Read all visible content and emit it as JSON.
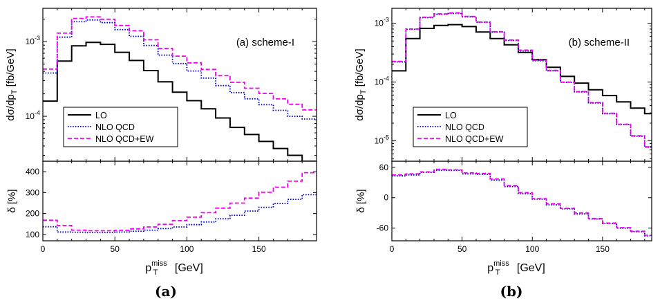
{
  "captions": [
    "(a)",
    "(b)"
  ],
  "colors": {
    "LO": "#000000",
    "NLO QCD": "#0000cc",
    "NLO QCD+EW": "#ee00ee"
  },
  "chart_data": [
    {
      "type": "line",
      "panel": "top",
      "annotation": "(a) scheme-I",
      "ylabel": "dσ/dp_T [fb/GeV]",
      "ylabel_main": "dσ/dp",
      "ylabel_sub": "T",
      "ylabel_tail": " [fb/GeV]",
      "xlim": [
        0,
        190
      ],
      "ylim": [
        2.5e-05,
        0.0028
      ],
      "yscale": "log",
      "yticks": [
        {
          "value": 0.0001,
          "base": "10",
          "exp": "-4"
        },
        {
          "value": 0.001,
          "base": "10",
          "exp": "-3"
        }
      ],
      "legend": "bottom-left",
      "bin_edges": [
        0,
        10,
        20,
        30,
        40,
        50,
        60,
        70,
        80,
        90,
        100,
        110,
        120,
        130,
        140,
        150,
        160,
        170,
        180,
        190
      ],
      "series": [
        {
          "name": "LO",
          "values": [
            0.00016,
            0.00055,
            0.00088,
            0.00098,
            0.00092,
            0.00072,
            0.00056,
            0.00041,
            0.00029,
            0.00021,
            0.000162,
            0.000126,
            9.5e-05,
            7.1e-05,
            5.7e-05,
            4.6e-05,
            3.7e-05,
            3e-05,
            2.5e-05
          ]
        },
        {
          "name": "NLO QCD",
          "values": [
            0.00038,
            0.00115,
            0.00185,
            0.00195,
            0.0018,
            0.00145,
            0.00118,
            0.00089,
            0.00066,
            0.00051,
            0.000405,
            0.000325,
            0.000258,
            0.000208,
            0.000171,
            0.000143,
            0.00012,
            0.0001,
            9.2e-05
          ]
        },
        {
          "name": "NLO QCD+EW",
          "values": [
            0.00043,
            0.0013,
            0.00205,
            0.00215,
            0.002,
            0.00165,
            0.0014,
            0.00106,
            0.00081,
            0.00064,
            0.00052,
            0.000425,
            0.00035,
            0.000285,
            0.000238,
            0.000202,
            0.000171,
            0.000145,
            0.000122
          ]
        }
      ]
    },
    {
      "type": "line",
      "panel": "bottom",
      "ylabel": "δ [%]",
      "xlabel": "p_T^miss [GeV]",
      "xlabel_main": "p",
      "xlabel_sup": "miss",
      "xlabel_sub": "T",
      "xlabel_tail": " [GeV]",
      "xlim": [
        0,
        190
      ],
      "xticks": [
        0,
        50,
        100,
        150
      ],
      "ylim": [
        70,
        450
      ],
      "yticks": [
        100,
        200,
        300,
        400
      ],
      "bin_edges": [
        0,
        10,
        20,
        30,
        40,
        50,
        60,
        70,
        80,
        90,
        100,
        110,
        120,
        130,
        140,
        150,
        160,
        170,
        180,
        190
      ],
      "series": [
        {
          "name": "NLO QCD",
          "values": [
            137,
            112,
            111,
            110,
            110,
            112,
            116,
            121,
            128,
            136,
            147,
            160,
            175,
            192,
            212,
            230,
            248,
            268,
            290
          ]
        },
        {
          "name": "NLO QCD+EW",
          "values": [
            168,
            143,
            121,
            118,
            118,
            120,
            127,
            136,
            149,
            166,
            183,
            204,
            226,
            250,
            274,
            302,
            326,
            355,
            395
          ]
        }
      ]
    },
    {
      "type": "line",
      "panel": "top",
      "annotation": "(b) scheme-II",
      "ylabel": "dσ/dp_T [fb/GeV]",
      "ylabel_main": "dσ/dp",
      "ylabel_sub": "T",
      "ylabel_tail": " [fb/GeV]",
      "xlim": [
        0,
        185
      ],
      "ylim": [
        4.5e-06,
        0.0018
      ],
      "yscale": "log",
      "yticks": [
        {
          "value": 1e-05,
          "base": "10",
          "exp": "-5"
        },
        {
          "value": 0.0001,
          "base": "10",
          "exp": "-4"
        },
        {
          "value": 0.001,
          "base": "10",
          "exp": "-3"
        }
      ],
      "legend": "bottom-left",
      "bin_edges": [
        0,
        10,
        20,
        30,
        40,
        50,
        60,
        70,
        80,
        90,
        100,
        110,
        120,
        130,
        140,
        150,
        160,
        170,
        180,
        185
      ],
      "series": [
        {
          "name": "LO",
          "values": [
            0.000155,
            0.00055,
            0.00082,
            0.00092,
            0.00095,
            0.00088,
            0.00071,
            0.00055,
            0.00043,
            0.00032,
            0.00024,
            0.000178,
            0.000125,
            9.6e-05,
            7.4e-05,
            5.9e-05,
            4.6e-05,
            3.6e-05,
            2.9e-05
          ]
        },
        {
          "name": "NLO QCD",
          "values": [
            0.00022,
            0.00079,
            0.00125,
            0.00142,
            0.00147,
            0.00129,
            0.00104,
            0.00071,
            0.00051,
            0.00034,
            0.00023,
            0.000155,
            9.9e-05,
            6.8e-05,
            4.4e-05,
            2.9e-05,
            1.9e-05,
            1.2e-05,
            7.8e-06
          ]
        },
        {
          "name": "NLO QCD+EW",
          "values": [
            0.000225,
            0.0008,
            0.00127,
            0.00145,
            0.0015,
            0.00131,
            0.00105,
            0.00072,
            0.00052,
            0.00035,
            0.000235,
            0.000158,
            0.0001,
            6.9e-05,
            4.5e-05,
            2.95e-05,
            1.92e-05,
            1.22e-05,
            7.9e-06
          ]
        }
      ]
    },
    {
      "type": "line",
      "panel": "bottom",
      "ylabel": "δ [%]",
      "xlabel": "p_T^miss [GeV]",
      "xlabel_main": "p",
      "xlabel_sup": "miss",
      "xlabel_sub": "T",
      "xlabel_tail": " [GeV]",
      "xlim": [
        0,
        185
      ],
      "xticks": [
        0,
        50,
        100,
        150
      ],
      "ylim": [
        -85,
        72
      ],
      "yticks": [
        -60,
        0,
        60
      ],
      "bin_edges": [
        0,
        10,
        20,
        30,
        40,
        50,
        60,
        70,
        80,
        90,
        100,
        110,
        120,
        130,
        140,
        150,
        160,
        170,
        180,
        185
      ],
      "series": [
        {
          "name": "NLO QCD",
          "values": [
            43,
            45,
            50,
            54,
            54,
            47,
            46,
            35,
            22,
            8,
            -3,
            -14,
            -22,
            -32,
            -42,
            -51,
            -60,
            -67,
            -75
          ]
        },
        {
          "name": "NLO QCD+EW",
          "values": [
            45,
            47,
            51,
            56,
            55,
            49,
            48,
            37,
            24,
            10,
            -2,
            -12,
            -21,
            -30,
            -41,
            -50,
            -59,
            -66,
            -74
          ]
        }
      ]
    }
  ]
}
